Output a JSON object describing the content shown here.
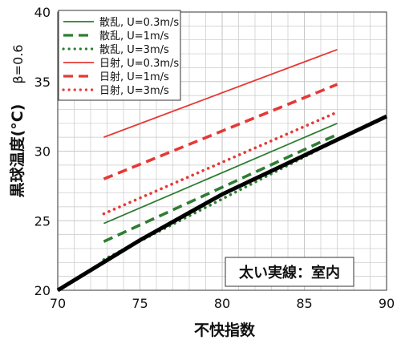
{
  "chart_data": {
    "type": "line",
    "xlabel": "不快指数",
    "ylabel": "黒球温度(°C)",
    "ylabel_suffix": "β=0.6",
    "xlim": [
      70,
      90
    ],
    "ylim": [
      20,
      40
    ],
    "x_ticks": [
      "70",
      "75",
      "80",
      "85",
      "90"
    ],
    "y_ticks": [
      "20",
      "25",
      "30",
      "35",
      "40"
    ],
    "grid": true,
    "legend_position": "top-left",
    "annotation": "太い実線：室内",
    "series": [
      {
        "name": "散乱, U=0.3m/s",
        "color": "#2e7d32",
        "style": "solid",
        "width": "thin",
        "x": [
          72.8,
          87.0
        ],
        "y": [
          24.8,
          32.0
        ]
      },
      {
        "name": "散乱, U=1m/s",
        "color": "#2e7d32",
        "style": "dashed",
        "width": "bold",
        "x": [
          72.8,
          87.0
        ],
        "y": [
          23.5,
          31.2
        ]
      },
      {
        "name": "散乱, U=3m/s",
        "color": "#2e7d32",
        "style": "dotted",
        "width": "bold",
        "x": [
          72.8,
          87.0
        ],
        "y": [
          22.2,
          30.8
        ]
      },
      {
        "name": "日射, U=0.3m/s",
        "color": "#e53935",
        "style": "solid",
        "width": "thin",
        "x": [
          72.8,
          87.0
        ],
        "y": [
          31.0,
          37.3
        ]
      },
      {
        "name": "日射, U=1m/s",
        "color": "#e53935",
        "style": "dashed",
        "width": "bold",
        "x": [
          72.8,
          87.0
        ],
        "y": [
          28.0,
          34.8
        ]
      },
      {
        "name": "日射, U=3m/s",
        "color": "#e53935",
        "style": "dotted",
        "width": "bold",
        "x": [
          72.8,
          87.0
        ],
        "y": [
          25.5,
          32.8
        ]
      },
      {
        "name": "",
        "indoor": true,
        "color": "#000000",
        "style": "solid",
        "width": "extra-bold",
        "x": [
          70,
          75,
          80,
          85,
          90
        ],
        "y": [
          20.0,
          23.6,
          26.9,
          29.7,
          32.5
        ]
      }
    ]
  }
}
